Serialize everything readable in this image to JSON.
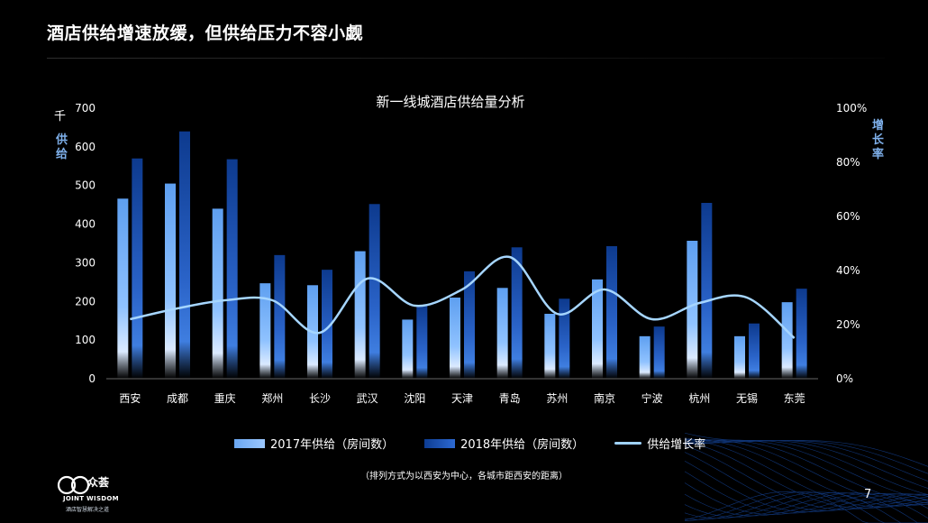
{
  "slide": {
    "title": "酒店供给增速放缓，但供给压力不容小觑",
    "page_number": "7",
    "footnote": "（排列方式为以西安为中心，各城市距西安的距离）"
  },
  "axes": {
    "left_unit": "千",
    "left_label": "供给",
    "right_label": "增长率"
  },
  "legend": {
    "s2017": "2017年供给（房间数）",
    "s2018": "2018年供给（房间数）",
    "growth": "供给增长率"
  },
  "logo": {
    "brand": "众荟",
    "english": "JOINT WISDOM",
    "sub": "酒店智慧解决之道"
  },
  "colors": {
    "bar_2017": "#7fb6ff",
    "bar_2018": "#1a4fb0",
    "line": "#a6d6ff",
    "background": "#000000"
  },
  "chart_data": {
    "type": "bar",
    "title": "新一线城酒店供给量分析",
    "categories": [
      "西安",
      "成都",
      "重庆",
      "郑州",
      "长沙",
      "武汉",
      "沈阳",
      "天津",
      "青岛",
      "苏州",
      "南京",
      "宁波",
      "杭州",
      "无锡",
      "东莞"
    ],
    "series": [
      {
        "name": "2017年供给（房间数）",
        "type": "bar",
        "axis": "left",
        "values": [
          466,
          505,
          440,
          247,
          242,
          330,
          153,
          210,
          235,
          168,
          257,
          110,
          357,
          110,
          198
        ]
      },
      {
        "name": "2018年供给（房间数）",
        "type": "bar",
        "axis": "left",
        "values": [
          570,
          640,
          568,
          320,
          282,
          452,
          190,
          278,
          340,
          207,
          343,
          135,
          455,
          143,
          233
        ]
      },
      {
        "name": "供给增长率",
        "type": "line",
        "axis": "right",
        "values": [
          0.22,
          0.26,
          0.29,
          0.29,
          0.17,
          0.37,
          0.27,
          0.33,
          0.45,
          0.24,
          0.33,
          0.22,
          0.28,
          0.3,
          0.15
        ]
      }
    ],
    "y_left": {
      "min": 0,
      "max": 700,
      "ticks": [
        0,
        100,
        200,
        300,
        400,
        500,
        600,
        700
      ]
    },
    "y_right": {
      "min": 0,
      "max": 1,
      "ticks": [
        "0%",
        "20%",
        "40%",
        "60%",
        "80%",
        "100%"
      ]
    },
    "legend_position": "bottom",
    "grid": false
  }
}
